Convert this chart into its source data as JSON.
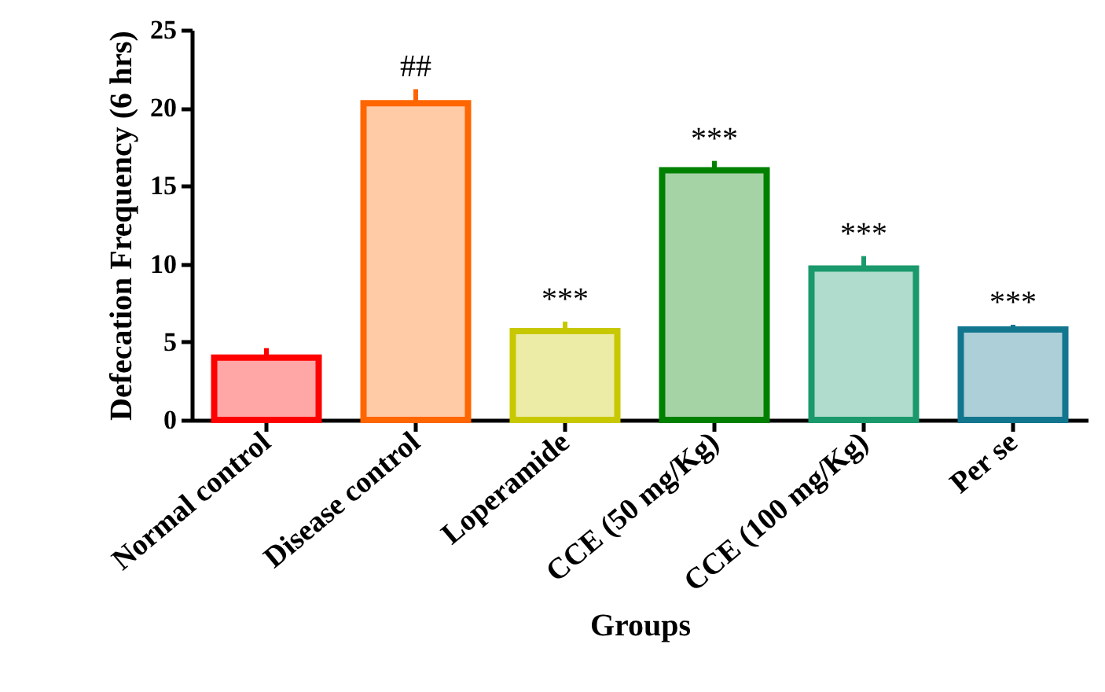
{
  "chart_data": {
    "type": "bar",
    "xlabel": "Groups",
    "ylabel": "Defecation Frequency (6 hrs)",
    "categories": [
      "Normal control",
      "Disease control",
      "Loperamide",
      "CCE (50 mg/Kg)",
      "CCE (100 mg/Kg)",
      "Per se"
    ],
    "values": [
      4.0,
      20.3,
      5.7,
      16.0,
      9.7,
      5.8
    ],
    "errors": [
      0.6,
      0.9,
      0.6,
      0.6,
      0.8,
      0.3
    ],
    "colors": [
      "#ff0000",
      "#ff6600",
      "#c8c800",
      "#008000",
      "#1a9a6c",
      "#13768f"
    ],
    "ylim": [
      0,
      25
    ],
    "yticks": [
      0,
      5,
      10,
      15,
      20,
      25
    ],
    "grid": false,
    "annotations": [
      {
        "text": "##",
        "x": "Disease control",
        "y": 21.2
      },
      {
        "text": "***",
        "x": "Loperamide",
        "y": 6.3
      },
      {
        "text": "***",
        "x": "CCE (50 mg/Kg)",
        "y": 16.6
      },
      {
        "text": "***",
        "x": "CCE (100 mg/Kg)",
        "y": 10.5
      },
      {
        "text": "***",
        "x": "Per se",
        "y": 6.1
      }
    ]
  }
}
